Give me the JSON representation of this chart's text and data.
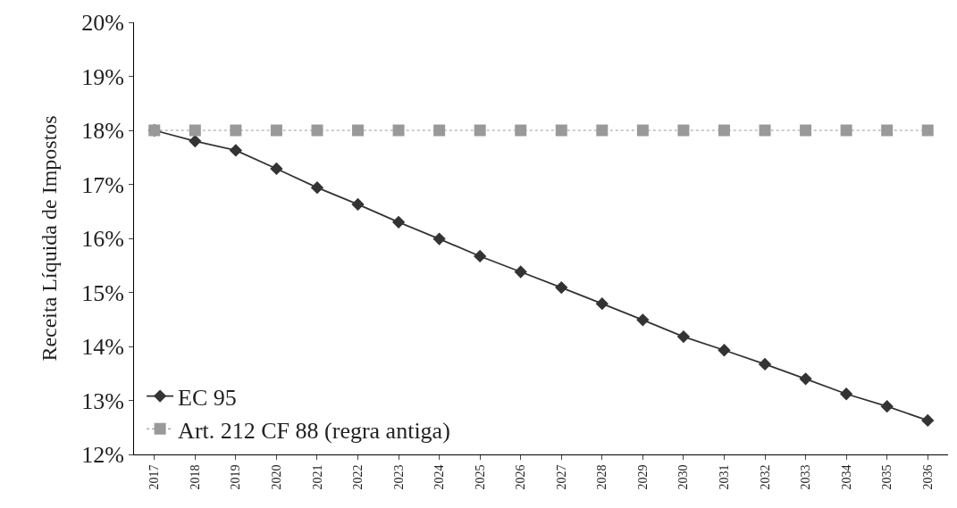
{
  "chart_data": {
    "type": "line",
    "ylabel": "Receita Líquida de Impostos",
    "categories": [
      "2017",
      "2018",
      "2019",
      "2020",
      "2021",
      "2022",
      "2023",
      "2024",
      "2025",
      "2026",
      "2027",
      "2028",
      "2029",
      "2030",
      "2031",
      "2032",
      "2033",
      "2034",
      "2035",
      "2036"
    ],
    "series": [
      {
        "name": "EC 95",
        "color": "#333333",
        "marker": "diamond",
        "line_style": "solid",
        "values": [
          18.0,
          17.8,
          17.63,
          17.29,
          16.94,
          16.63,
          16.3,
          15.99,
          15.67,
          15.38,
          15.09,
          14.79,
          14.49,
          14.18,
          13.93,
          13.67,
          13.4,
          13.12,
          12.89,
          12.63
        ]
      },
      {
        "name": "Art. 212 CF 88 (regra antiga)",
        "color": "#999999",
        "marker": "square",
        "line_style": "dotted",
        "values": [
          18,
          18,
          18,
          18,
          18,
          18,
          18,
          18,
          18,
          18,
          18,
          18,
          18,
          18,
          18,
          18,
          18,
          18,
          18,
          18
        ]
      }
    ],
    "ylim": [
      12,
      20
    ],
    "yticks": [
      {
        "value": 12,
        "label": "12%"
      },
      {
        "value": 13,
        "label": "13%"
      },
      {
        "value": 14,
        "label": "14%"
      },
      {
        "value": 15,
        "label": "15%"
      },
      {
        "value": 16,
        "label": "16%"
      },
      {
        "value": 17,
        "label": "17%"
      },
      {
        "value": 18,
        "label": "18%"
      },
      {
        "value": 19,
        "label": "19%"
      },
      {
        "value": 20,
        "label": "20%"
      }
    ],
    "grid": false,
    "legend": "bottom left"
  }
}
